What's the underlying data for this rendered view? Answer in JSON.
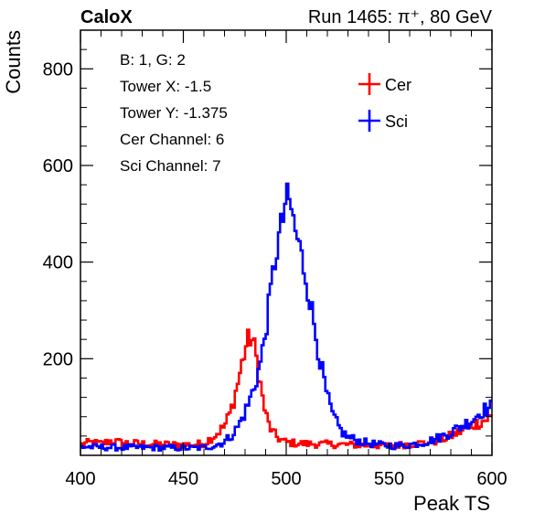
{
  "header": {
    "left": "CaloX",
    "right": "Run 1465:   π⁺, 80 GeV"
  },
  "info_lines": [
    "B: 1, G: 2",
    "Tower X: -1.5",
    "Tower Y: -1.375",
    "Cer Channel: 6",
    "Sci Channel: 7"
  ],
  "colors": {
    "cer": "#ff0000",
    "sci": "#0000ff"
  },
  "chart_data": {
    "type": "line",
    "style": "step-histogram",
    "xlabel": "Peak TS",
    "ylabel": "Counts",
    "xlim": [
      400,
      600
    ],
    "ylim": [
      0,
      880
    ],
    "x_ticks": [
      400,
      450,
      500,
      550,
      600
    ],
    "y_ticks": [
      200,
      400,
      600,
      800
    ],
    "grid": false,
    "legend_position": "top-right",
    "bin_width": 1,
    "series": [
      {
        "name": "Cer",
        "color": "#ff0000",
        "points": [
          [
            400,
            22
          ],
          [
            405,
            27
          ],
          [
            410,
            24
          ],
          [
            415,
            30
          ],
          [
            420,
            26
          ],
          [
            425,
            25
          ],
          [
            430,
            24
          ],
          [
            435,
            23
          ],
          [
            440,
            23
          ],
          [
            445,
            22
          ],
          [
            450,
            22
          ],
          [
            455,
            22
          ],
          [
            460,
            25
          ],
          [
            465,
            40
          ],
          [
            470,
            60
          ],
          [
            473,
            90
          ],
          [
            476,
            140
          ],
          [
            479,
            200
          ],
          [
            481,
            235
          ],
          [
            483,
            245
          ],
          [
            485,
            215
          ],
          [
            487,
            160
          ],
          [
            489,
            105
          ],
          [
            491,
            70
          ],
          [
            493,
            50
          ],
          [
            495,
            40
          ],
          [
            497,
            33
          ],
          [
            500,
            27
          ],
          [
            505,
            25
          ],
          [
            510,
            24
          ],
          [
            520,
            23
          ],
          [
            530,
            22
          ],
          [
            540,
            21
          ],
          [
            550,
            20
          ],
          [
            560,
            23
          ],
          [
            570,
            27
          ],
          [
            575,
            32
          ],
          [
            580,
            40
          ],
          [
            585,
            50
          ],
          [
            590,
            62
          ],
          [
            595,
            70
          ],
          [
            600,
            80
          ]
        ]
      },
      {
        "name": "Sci",
        "color": "#0000ff",
        "points": [
          [
            400,
            18
          ],
          [
            410,
            17
          ],
          [
            420,
            16
          ],
          [
            430,
            16
          ],
          [
            440,
            16
          ],
          [
            450,
            15
          ],
          [
            455,
            15
          ],
          [
            460,
            16
          ],
          [
            465,
            20
          ],
          [
            470,
            28
          ],
          [
            473,
            40
          ],
          [
            476,
            55
          ],
          [
            479,
            80
          ],
          [
            482,
            110
          ],
          [
            485,
            150
          ],
          [
            488,
            200
          ],
          [
            490,
            260
          ],
          [
            492,
            320
          ],
          [
            494,
            390
          ],
          [
            496,
            440
          ],
          [
            498,
            480
          ],
          [
            499,
            500
          ],
          [
            500,
            545
          ],
          [
            501,
            510
          ],
          [
            502,
            525
          ],
          [
            504,
            470
          ],
          [
            506,
            440
          ],
          [
            508,
            400
          ],
          [
            510,
            360
          ],
          [
            512,
            310
          ],
          [
            514,
            260
          ],
          [
            516,
            210
          ],
          [
            518,
            160
          ],
          [
            520,
            120
          ],
          [
            522,
            90
          ],
          [
            524,
            70
          ],
          [
            526,
            55
          ],
          [
            528,
            45
          ],
          [
            530,
            38
          ],
          [
            535,
            30
          ],
          [
            540,
            25
          ],
          [
            545,
            22
          ],
          [
            550,
            20
          ],
          [
            555,
            20
          ],
          [
            560,
            22
          ],
          [
            565,
            25
          ],
          [
            570,
            30
          ],
          [
            575,
            38
          ],
          [
            580,
            48
          ],
          [
            585,
            60
          ],
          [
            590,
            72
          ],
          [
            595,
            92
          ],
          [
            600,
            100
          ]
        ]
      }
    ]
  }
}
